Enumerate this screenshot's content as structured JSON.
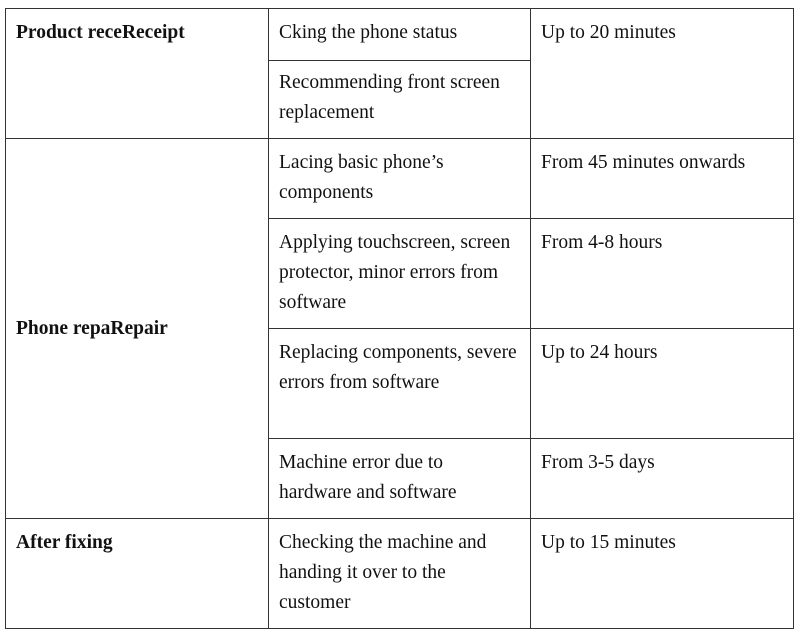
{
  "table": {
    "groups": [
      {
        "stage": "Product receReceipt"
      },
      {
        "stage": "Phone repaRepair"
      },
      {
        "stage": "After fixing"
      }
    ],
    "rows": [
      {
        "task": "Cking the phone status",
        "time": "Up to 20 minutes"
      },
      {
        "task": "Recommending front screen replacement",
        "time": ""
      },
      {
        "task": "Lacing basic phone’s components",
        "time": "From 45 minutes onwards"
      },
      {
        "task": "Applying touchscreen, screen protector, minor errors from software",
        "time": "From 4-8 hours"
      },
      {
        "task": "Replacing components, severe errors from software",
        "time": "Up to 24 hours"
      },
      {
        "task": "Machine error due to hardware and software",
        "time": "From 3-5 days"
      },
      {
        "task": "Checking the machine and handing it over to the customer",
        "time": "Up to 15 minutes"
      }
    ]
  }
}
